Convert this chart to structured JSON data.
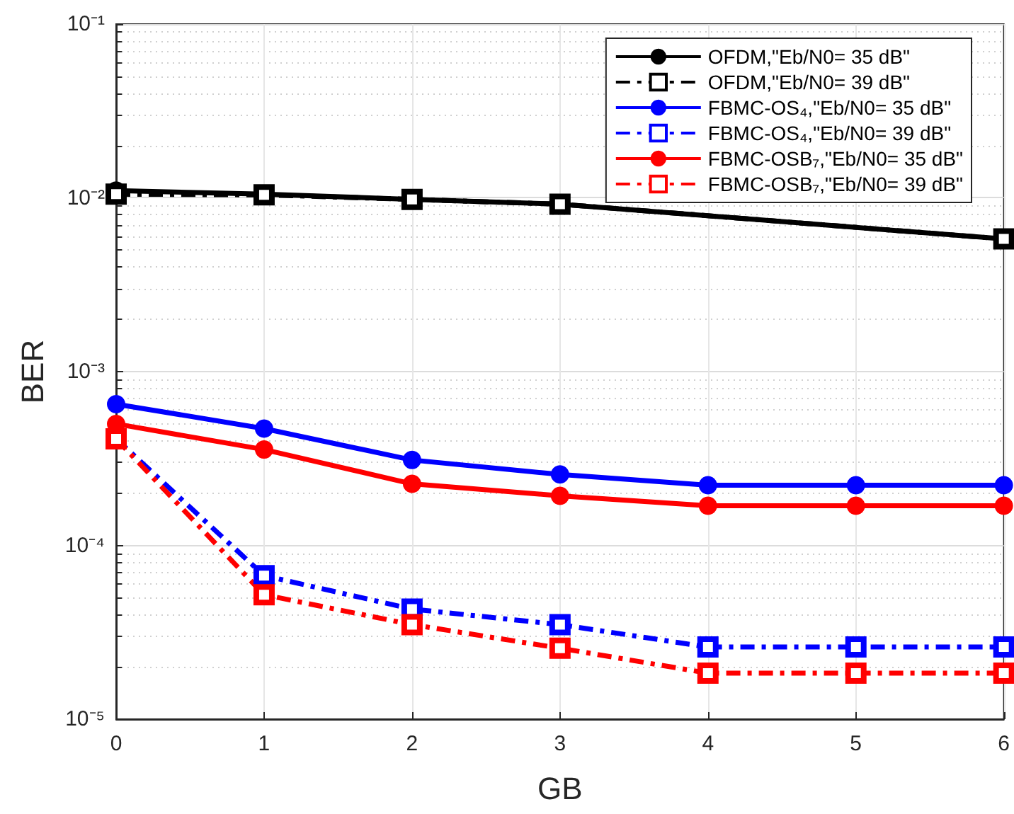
{
  "chart_data": {
    "type": "line",
    "xlabel": "GB",
    "ylabel": "BER",
    "log": "y",
    "grid": true,
    "legend": "top right",
    "x": [
      0,
      1,
      2,
      3,
      4,
      5,
      6
    ],
    "xlim": [
      0,
      6
    ],
    "xticks": [
      0,
      1,
      2,
      3,
      4,
      5,
      6
    ],
    "ylim": [
      1e-05,
      0.1
    ],
    "yticks": [
      {
        "value": 1e-05,
        "label": "10⁻⁵"
      },
      {
        "value": 0.0001,
        "label": "10⁻⁴"
      },
      {
        "value": 0.001,
        "label": "10⁻³"
      },
      {
        "value": 0.01,
        "label": "10⁻²"
      },
      {
        "value": 0.1,
        "label": "10⁻¹"
      }
    ],
    "series": [
      {
        "name": "OFDM,\"Eb/N0= 35 dB\"",
        "color": "#000000",
        "marker": "circle",
        "line_style": "solid",
        "values": [
          0.011,
          0.0105,
          0.0098,
          0.0092,
          null,
          null,
          0.0058
        ]
      },
      {
        "name": "OFDM,\"Eb/N0= 39 dB\"",
        "color": "#000000",
        "marker": "square",
        "line_style": "dashdot",
        "values": [
          0.0105,
          0.0104,
          0.0098,
          0.0092,
          null,
          null,
          0.0058
        ]
      },
      {
        "name": "FBMC-OS₄,\"Eb/N0= 35 dB\"",
        "color": "#0000ff",
        "marker": "circle",
        "line_style": "solid",
        "values": [
          0.00065,
          0.00047,
          0.00031,
          0.000256,
          0.000222,
          0.000222,
          0.000222
        ]
      },
      {
        "name": "FBMC-OS₄,\"Eb/N0= 39 dB\"",
        "color": "#0000ff",
        "marker": "square",
        "line_style": "dashdot",
        "values": [
          0.00041,
          6.7e-05,
          4.3e-05,
          3.5e-05,
          2.6e-05,
          2.6e-05,
          2.6e-05
        ]
      },
      {
        "name": "FBMC-OSB₇,\"Eb/N0= 35 dB\"",
        "color": "#ff0000",
        "marker": "circle",
        "line_style": "solid",
        "values": [
          0.0005,
          0.000356,
          0.000226,
          0.000193,
          0.000169,
          0.000169,
          0.000169
        ]
      },
      {
        "name": "FBMC-OSB₇,\"Eb/N0= 39 dB\"",
        "color": "#ff0000",
        "marker": "square",
        "line_style": "dashdot",
        "values": [
          0.00041,
          5.2e-05,
          3.5e-05,
          2.56e-05,
          1.84e-05,
          1.84e-05,
          1.84e-05
        ]
      }
    ]
  }
}
